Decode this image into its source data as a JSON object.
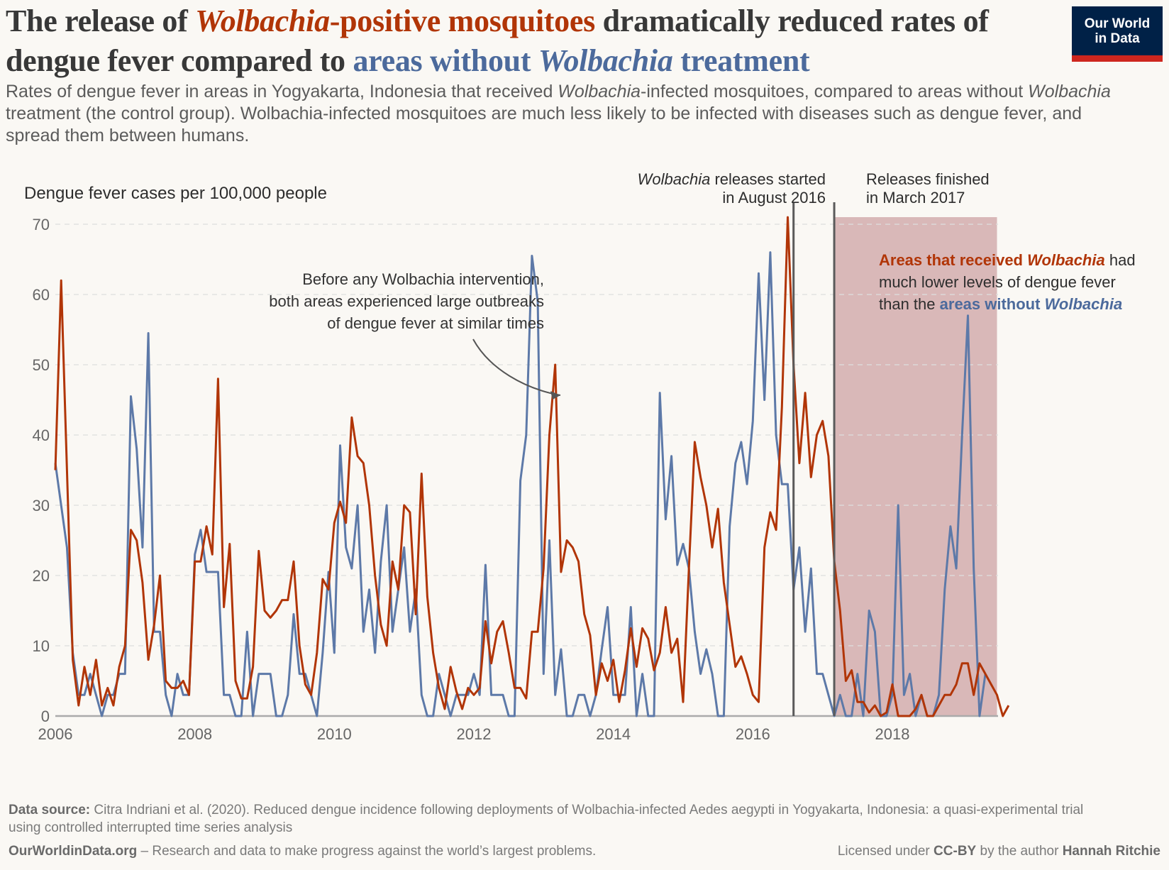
{
  "header": {
    "title_parts": {
      "p1": "The release of ",
      "p2_italic": "Wolbachia",
      "p3": "-positive mosquitoes",
      "p4": " dramatically reduced rates of dengue fever compared to ",
      "p5": "areas without ",
      "p6_italic": "Wolbachia",
      "p7": " treatment"
    },
    "subtitle_parts": {
      "s1": "Rates of dengue fever in areas in Yogyakarta, Indonesia that received ",
      "s2_italic": "Wolbachia",
      "s3": "-infected mosquitoes, compared to areas without ",
      "s4_italic": "Wolbachia",
      "s5": " treatment (the control group). Wolbachia-infected mosquitoes are much less likely to be infected with diseases such as dengue fever, and spread them between humans."
    },
    "logo_line1": "Our World",
    "logo_line2": "in Data"
  },
  "colors": {
    "treated": "#b13507",
    "control": "#5d79a8",
    "shade": "#d9b8b8",
    "background": "#faf8f4"
  },
  "chart_data": {
    "type": "line",
    "ylabel": "Dengue fever cases per 100,000 people",
    "ylim": [
      0,
      70
    ],
    "yticks": [
      0,
      10,
      20,
      30,
      40,
      50,
      60,
      70
    ],
    "xticks": [
      "2006",
      "2008",
      "2010",
      "2012",
      "2014",
      "2016",
      "2018"
    ],
    "xstart": "2006-01",
    "frequency": "monthly",
    "grid": true,
    "series": [
      {
        "name": "Areas that received Wolbachia",
        "color": "#b13507",
        "values": [
          35,
          62,
          35,
          8,
          1.5,
          7,
          3,
          8,
          1.5,
          4,
          1.5,
          7,
          10,
          26.5,
          25,
          19,
          8,
          13,
          20,
          5,
          4,
          4,
          5,
          3,
          22,
          22,
          27,
          23,
          48,
          15.5,
          24.5,
          5,
          2.5,
          2.5,
          7,
          23.5,
          15,
          14,
          15,
          16.5,
          16.5,
          22,
          10,
          4.5,
          3,
          9,
          19.5,
          18,
          27.5,
          30.5,
          27.5,
          42.5,
          37,
          36,
          30,
          20,
          13,
          10,
          22,
          18,
          30,
          29,
          14.5,
          34.5,
          17,
          9,
          4,
          1,
          7,
          3.5,
          1,
          4,
          3,
          4,
          13.5,
          7.5,
          12,
          13.5,
          9,
          4,
          4,
          2.5,
          12,
          12,
          21,
          40,
          50,
          20.5,
          25,
          24,
          22,
          14.5,
          11.5,
          3,
          7.5,
          5,
          8,
          2,
          6.5,
          12.5,
          7,
          12.5,
          11,
          6.5,
          9,
          15.5,
          9,
          11,
          2,
          21,
          39,
          34,
          30,
          24,
          29.5,
          19,
          13,
          7,
          8.5,
          6,
          3,
          2,
          24,
          29,
          26.5,
          44,
          71,
          50,
          36,
          46,
          34,
          40,
          42,
          37,
          22,
          15,
          5,
          6.5,
          2,
          2,
          0.5,
          1.5,
          0,
          0.5,
          4.5,
          0,
          0,
          0,
          1,
          3,
          0,
          0,
          1.5,
          3,
          3,
          4.5,
          7.5,
          7.5,
          3,
          7.5,
          6,
          4.5,
          3,
          0,
          1.5
        ]
      },
      {
        "name": "Areas without Wolbachia",
        "color": "#5d79a8",
        "values": [
          36,
          30,
          24,
          9,
          3,
          3,
          6,
          3,
          0,
          3,
          3,
          6,
          6,
          45.5,
          38,
          24,
          54.5,
          12,
          12,
          3,
          0,
          6,
          3,
          3,
          23,
          26.5,
          20.5,
          20.5,
          20.5,
          3,
          3,
          0,
          0,
          12,
          0,
          6,
          6,
          6,
          0,
          0,
          3,
          14.5,
          6,
          6,
          3,
          0,
          9,
          20.5,
          9,
          38.5,
          24,
          21,
          30,
          12,
          18,
          9,
          22,
          30,
          12,
          18,
          24,
          12,
          18,
          3,
          0,
          0,
          6,
          3,
          0,
          3,
          3,
          3,
          6,
          3,
          21.5,
          3,
          3,
          3,
          0,
          0,
          33.5,
          40,
          65.5,
          59,
          6,
          25,
          3,
          9.5,
          0,
          0,
          3,
          3,
          0,
          3,
          9.5,
          15.5,
          3,
          3,
          3,
          15.5,
          0,
          6,
          0,
          0,
          46,
          28,
          37,
          21.5,
          24.5,
          21,
          12,
          6,
          9.5,
          6,
          0,
          0,
          27,
          36,
          39,
          33,
          42,
          63,
          45,
          66,
          40,
          33,
          33,
          18,
          24,
          12,
          21,
          6,
          6,
          3,
          0,
          3,
          0,
          0,
          6,
          0,
          15,
          12,
          0,
          0,
          3,
          30,
          3,
          6,
          0,
          3,
          0,
          0,
          3,
          18,
          27,
          21,
          40,
          57,
          21,
          0,
          6
        ]
      }
    ],
    "vertical_markers": [
      {
        "label_italic": "Wolbachia",
        "label_line1_rest": " releases started",
        "label_line2": "in August 2016",
        "date": "2016-08"
      },
      {
        "label_line1": "Releases finished",
        "label_line2": "in March 2017",
        "date": "2017-03"
      }
    ],
    "shaded_region": {
      "from": "2017-03",
      "to": "2019-07"
    },
    "annotations": {
      "before": {
        "line1": "Before any Wolbachia intervention,",
        "line2": "both areas experienced large outbreaks",
        "line3": "of dengue fever at similar times"
      },
      "after": {
        "a1": "Areas that received ",
        "a2_italic": "Wolbachia",
        "a3": " had",
        "a4": "much lower levels of dengue fever",
        "a5": "than the ",
        "a6": "areas without ",
        "a7_italic": "Wolbachia"
      }
    }
  },
  "footer": {
    "source_label": "Data source:",
    "source_text": " Citra Indriani et al. (2020). Reduced dengue incidence following deployments of Wolbachia-infected Aedes aegypti in Yogyakarta, Indonesia: a quasi-experimental trial using controlled interrupted time series analysis",
    "site": "OurWorldinData.org",
    "tagline": " – Research and data to make progress against the world’s largest problems.",
    "license_prefix": "Licensed under ",
    "license": "CC-BY",
    "license_mid": " by the author ",
    "author": "Hannah Ritchie"
  }
}
